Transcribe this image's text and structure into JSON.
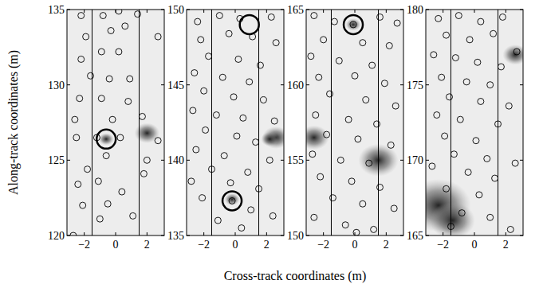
{
  "chart_data": {
    "type": "scatter",
    "xlabel": "Cross-track coordinates (m)",
    "ylabel": "Along-track coordinates (m)",
    "panels": [
      {
        "xlim": [
          -3.1,
          3.1
        ],
        "xticks": [
          -2,
          0,
          2
        ],
        "ylim": [
          120,
          135
        ],
        "yticks": [
          120,
          125,
          130,
          135
        ],
        "reference_lines": [
          -1.5,
          1.5
        ],
        "dark_regions": {
          "x": [
            2.0,
            -0.6
          ],
          "y": [
            126.8,
            126.4
          ],
          "size": [
            0.5,
            0.3
          ]
        },
        "series": [
          {
            "marker": "circle",
            "x": [
              -2.2,
              -0.8,
              0.2,
              1.4,
              -1.9,
              -0.3,
              0.6,
              2.7,
              -2.2,
              -0.9,
              0.2,
              -1.6,
              -0.4,
              0.9,
              -2.3,
              -0.9,
              0.8,
              -2.6,
              -0.2,
              1.7,
              -2.5,
              -1.2,
              0.3,
              -0.6,
              -1.8,
              1.8,
              -2.4,
              -1.1,
              0.4,
              -2.1,
              -0.5,
              1.1,
              -1.0,
              -2.7,
              2.0,
              2.7
            ],
            "y": [
              134.6,
              134.6,
              134.9,
              134.7,
              133.2,
              133.6,
              133.9,
              133.2,
              131.7,
              132.2,
              132.2,
              130.6,
              130.4,
              130.4,
              129.1,
              129.1,
              128.9,
              127.7,
              127.7,
              127.9,
              126.5,
              126.5,
              126.5,
              125.3,
              124.4,
              124.1,
              123.4,
              123.6,
              122.9,
              122.0,
              122.1,
              121.3,
              121.1,
              120.0,
              125.0,
              126.3
            ]
          },
          {
            "marker": "large-circle",
            "x": [
              -0.6
            ],
            "y": [
              126.4
            ]
          }
        ]
      },
      {
        "xlim": [
          -3.1,
          3.1
        ],
        "xticks": [
          -2,
          0,
          2
        ],
        "ylim": [
          135,
          150
        ],
        "yticks": [
          135,
          140,
          145,
          150
        ],
        "reference_lines": [
          -1.5,
          1.5
        ],
        "dark_regions": {
          "x": [
            2.6,
            -0.2,
            2.2
          ],
          "y": [
            141.5,
            137.4,
            141.4
          ],
          "size": [
            0.55,
            0.3,
            0.35
          ]
        },
        "series": [
          {
            "marker": "circle",
            "x": [
              -2.4,
              -1.0,
              0.3,
              2.3,
              -2.2,
              -0.4,
              1.1,
              2.6,
              -1.7,
              0.2,
              1.6,
              -2.6,
              -0.8,
              0.9,
              -2.0,
              -0.1,
              1.8,
              -2.7,
              -1.2,
              0.5,
              2.5,
              -1.9,
              0.1,
              1.3,
              -2.5,
              -0.7,
              2.2,
              -1.5,
              0.8,
              -2.8,
              -0.3,
              1.5,
              -2.1,
              -0.2,
              1.0,
              2.4,
              -1.1,
              0.4
            ],
            "y": [
              149.2,
              149.6,
              149.4,
              149.5,
              148.0,
              148.4,
              148.2,
              147.8,
              146.9,
              146.7,
              146.3,
              145.8,
              145.5,
              145.2,
              144.6,
              144.2,
              144.0,
              143.3,
              143.0,
              142.8,
              142.6,
              142.0,
              141.6,
              141.2,
              140.7,
              140.3,
              140.0,
              139.4,
              139.2,
              138.6,
              138.5,
              138.1,
              137.5,
              137.3,
              136.7,
              136.3,
              136.0,
              135.5
            ]
          },
          {
            "marker": "large-circle",
            "x": [
              0.9,
              -0.2
            ],
            "y": [
              149.0,
              137.3
            ]
          }
        ]
      },
      {
        "xlim": [
          -3.1,
          3.1
        ],
        "xticks": [
          -2,
          0,
          2
        ],
        "ylim": [
          150,
          165
        ],
        "yticks": [
          150,
          155,
          160,
          165
        ],
        "reference_lines": [
          -1.5,
          1.5
        ],
        "dark_regions": {
          "x": [
            1.5,
            -0.1,
            -2.6
          ],
          "y": [
            155.0,
            164.0,
            156.5
          ],
          "size": [
            0.8,
            0.3,
            0.6
          ]
        },
        "series": [
          {
            "marker": "circle",
            "x": [
              -2.6,
              -1.3,
              -0.1,
              1.6,
              2.7,
              -2.0,
              0.5,
              2.2,
              -2.8,
              -1.0,
              1.1,
              -2.3,
              0.0,
              1.9,
              -1.6,
              0.7,
              2.6,
              -2.5,
              -0.4,
              1.4,
              -1.8,
              0.2,
              2.3,
              -2.7,
              -0.9,
              0.9,
              -2.2,
              -0.2,
              1.6,
              -1.4,
              0.5,
              2.5,
              -2.6,
              -0.6,
              1.2,
              0.1
            ],
            "y": [
              164.6,
              164.2,
              164.0,
              164.5,
              164.1,
              163.0,
              162.8,
              162.6,
              161.9,
              161.6,
              161.3,
              160.5,
              160.6,
              160.1,
              159.4,
              159.0,
              158.6,
              158.0,
              157.7,
              157.4,
              156.7,
              156.4,
              156.0,
              155.4,
              155.0,
              154.8,
              153.9,
              153.6,
              153.2,
              152.5,
              152.1,
              151.8,
              151.2,
              150.7,
              150.4,
              150.2
            ]
          },
          {
            "marker": "large-circle",
            "x": [
              -0.1
            ],
            "y": [
              164.0
            ]
          }
        ]
      },
      {
        "xlim": [
          -3.1,
          3.1
        ],
        "xticks": [
          -2,
          0,
          2
        ],
        "ylim": [
          165,
          180
        ],
        "yticks": [
          165,
          170,
          175,
          180
        ],
        "reference_lines": [
          -1.5,
          1.5
        ],
        "dark_regions": {
          "x": [
            -2.3,
            -1.4,
            2.6
          ],
          "y": [
            167.0,
            166.0,
            177.0
          ],
          "size": [
            1.3,
            0.9,
            0.5
          ]
        },
        "series": [
          {
            "marker": "circle",
            "x": [
              -2.3,
              -1.0,
              0.4,
              1.8,
              -1.8,
              -0.3,
              1.2,
              2.7,
              -2.6,
              -1.2,
              0.2,
              1.7,
              -2.1,
              -0.5,
              1.0,
              -1.6,
              0.4,
              2.2,
              -2.4,
              -0.9,
              1.5,
              -1.9,
              0.1,
              2.6,
              -1.3,
              0.8,
              -2.7,
              -0.4,
              1.3,
              -1.8,
              0.3,
              -0.8,
              1.0,
              2.3,
              -1.5
            ],
            "y": [
              179.4,
              179.6,
              179.2,
              179.5,
              178.3,
              178.0,
              178.4,
              177.2,
              177.0,
              176.8,
              176.5,
              176.2,
              175.5,
              175.2,
              175.0,
              174.2,
              173.9,
              173.6,
              173.0,
              172.7,
              172.4,
              171.6,
              171.3,
              169.8,
              170.4,
              170.1,
              169.6,
              169.2,
              168.8,
              168.1,
              167.7,
              166.5,
              166.2,
              165.4,
              165.6
            ]
          },
          {
            "marker": "large-circle",
            "x": [],
            "y": []
          }
        ]
      }
    ]
  }
}
